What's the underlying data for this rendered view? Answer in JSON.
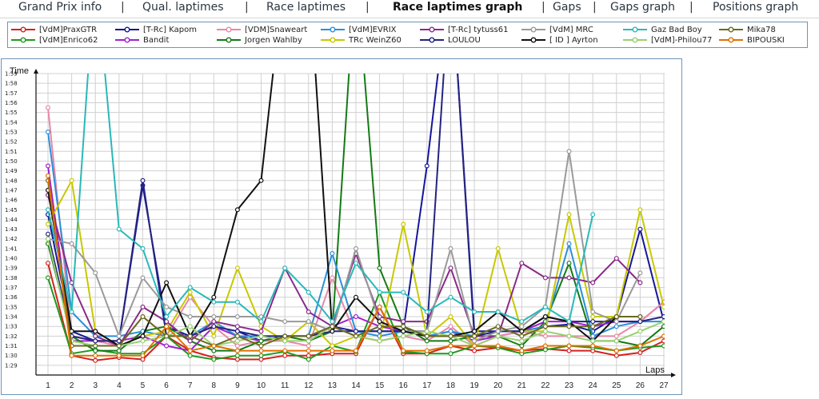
{
  "nav": {
    "items": [
      {
        "label": "Grand Prix info",
        "active": false
      },
      {
        "label": "Qual. laptimes",
        "active": false
      },
      {
        "label": "Race laptimes",
        "active": false
      },
      {
        "label": "Race laptimes graph",
        "active": true
      },
      {
        "label": "Gaps",
        "active": false
      },
      {
        "label": "Gaps graph",
        "active": false
      },
      {
        "label": "Positions graph",
        "active": false
      }
    ],
    "separator": "|"
  },
  "chart_data": {
    "type": "line",
    "ylabel": "Time",
    "xlabel": "Laps",
    "x": [
      1,
      2,
      3,
      4,
      5,
      6,
      7,
      8,
      9,
      10,
      11,
      12,
      13,
      14,
      15,
      16,
      17,
      18,
      19,
      20,
      21,
      22,
      23,
      24,
      25,
      26,
      27
    ],
    "y_ticks": [
      "1:29",
      "1:30",
      "1:31",
      "1:32",
      "1:33",
      "1:34",
      "1:35",
      "1:36",
      "1:37",
      "1:38",
      "1:39",
      "1:40",
      "1:41",
      "1:42",
      "1:43",
      "1:44",
      "1:45",
      "1:46",
      "1:47",
      "1:48",
      "1:49",
      "1:50",
      "1:51",
      "1:52",
      "1:53",
      "1:54",
      "1:55",
      "1:56",
      "1:57",
      "1:58",
      "1:59"
    ],
    "ylim_seconds": [
      88,
      119
    ],
    "grid": true,
    "legend_position": "top",
    "series": [
      {
        "name": "[VdM]PraxGTR",
        "color": "#d42020",
        "values": [
          99.5,
          90,
          89.5,
          89.8,
          89.6,
          92,
          90.5,
          89.8,
          89.6,
          89.6,
          90,
          90,
          90.2,
          90.2,
          95,
          90.2,
          90.2,
          91,
          90.5,
          90.8,
          90.5,
          90.7,
          90.5,
          90.5,
          90,
          90.3,
          91.5
        ]
      },
      {
        "name": "[VdM]Enrico62",
        "color": "#1e9a1e",
        "values": [
          98,
          90.2,
          90.6,
          90.2,
          90.2,
          92,
          90,
          89.6,
          90,
          90,
          90.4,
          89.6,
          91,
          90.4,
          96.5,
          90.4,
          90.2,
          90.2,
          91,
          90.8,
          90.2,
          90.6,
          91,
          90.8,
          90.5,
          90.8,
          91
        ]
      },
      {
        "name": "[T-Rc] Kapom",
        "color": "#16169a",
        "values": [
          104.5,
          92.5,
          91.5,
          91.5,
          107.5,
          93,
          92,
          93,
          92.5,
          91.5,
          92,
          92,
          93,
          92.5,
          92.5,
          92.5,
          109.5,
          130,
          92.5,
          92.5,
          92.5,
          93,
          93.2,
          92.5,
          94,
          103,
          93.5
        ]
      },
      {
        "name": "Bandit",
        "color": "#a020d0",
        "values": [
          109.5,
          91.5,
          91.5,
          91.5,
          92,
          91,
          90.5,
          93,
          92,
          91.5,
          92,
          92,
          93,
          94,
          93,
          92.5,
          92,
          92.5,
          91.5,
          92,
          92.5,
          93.5,
          93.5,
          93,
          93.5,
          93.5,
          95.5
        ]
      },
      {
        "name": "[VDM]Snaweart",
        "color": "#e888a8",
        "values": [
          115.5,
          92,
          91.5,
          91,
          94,
          92,
          96,
          93,
          91,
          91.5,
          91.5,
          91,
          98,
          92,
          91.5,
          92,
          91.5,
          93,
          91,
          92,
          92.5,
          92,
          92,
          92,
          92,
          93.5,
          95.5
        ]
      },
      {
        "name": "Jorgen Wahlby",
        "color": "#157a15",
        "values": [
          101.5,
          92,
          90.5,
          90.5,
          92.5,
          93,
          91.5,
          90.5,
          90.5,
          91.5,
          92,
          91.5,
          92.5,
          130,
          99,
          93,
          91.5,
          91.5,
          92,
          92,
          91,
          93.5,
          99.5,
          91.5,
          91.5,
          91,
          93
        ]
      },
      {
        "name": "[VdM]EVRIX",
        "color": "#2a90d8",
        "values": [
          113,
          94.5,
          92,
          92,
          92.5,
          92,
          92,
          93.5,
          92,
          92,
          92,
          92,
          100.5,
          92.5,
          92,
          92.5,
          92,
          92.5,
          92,
          92.5,
          92.5,
          93,
          101.5,
          92,
          93,
          93.5,
          93.5
        ]
      },
      {
        "name": "TRc WeinZ60",
        "color": "#c8c800",
        "values": [
          103.5,
          108,
          92.5,
          91,
          92,
          92.5,
          96.5,
          92,
          99,
          93,
          91.5,
          93.5,
          91,
          92,
          91.5,
          103.5,
          92,
          94,
          91,
          101,
          92.5,
          92.5,
          104.5,
          94,
          94,
          105,
          95
        ]
      },
      {
        "name": "[T-Rc] tytuss61",
        "color": "#8a2a8a",
        "values": [
          106.5,
          97.5,
          92,
          91,
          95,
          93.5,
          91.5,
          93.5,
          93,
          92.5,
          99,
          94.5,
          93,
          100.5,
          94,
          93.5,
          93.5,
          99,
          92,
          92,
          99.5,
          98,
          98,
          97.5,
          100,
          97.5,
          null
        ]
      },
      {
        "name": "LOULOU",
        "color": "#242480",
        "values": [
          102.5,
          92,
          91.5,
          91.5,
          108,
          92,
          92,
          93,
          92.5,
          92,
          92,
          92,
          92.5,
          92.5,
          92.5,
          92.5,
          92.5,
          130,
          92,
          92.5,
          92.5,
          94,
          93.5,
          93.5,
          93.5,
          93.5,
          94
        ]
      },
      {
        "name": "[VdM] MRC",
        "color": "#9a9a9a",
        "values": [
          102,
          101.5,
          98.5,
          92,
          98,
          95,
          94,
          94,
          94,
          94,
          93.5,
          93.5,
          92.5,
          101,
          93.5,
          92.5,
          92.5,
          101,
          91.5,
          92.5,
          93,
          95,
          111,
          94.5,
          93.5,
          98.5,
          null
        ]
      },
      {
        "name": "[ ID ] Ayrton",
        "color": "#111111",
        "values": [
          107,
          92.5,
          92.5,
          91,
          92,
          97.5,
          92,
          96,
          105,
          108,
          130,
          130,
          92.5,
          96,
          93.5,
          92.5,
          92,
          92,
          92.5,
          94.5,
          92.5,
          94,
          93.5,
          91.5,
          94,
          94,
          null
        ]
      },
      {
        "name": "Gaz Bad Boy",
        "color": "#2ab8b8",
        "values": [
          105,
          94.5,
          130,
          103,
          101,
          94,
          97,
          95.5,
          95.5,
          93.5,
          99,
          96.5,
          93.5,
          99.5,
          96.5,
          96.5,
          94.5,
          96,
          94.5,
          94.5,
          93.5,
          95,
          93.5,
          104.5,
          null,
          null,
          null
        ]
      },
      {
        "name": "[VdM]-Philou77",
        "color": "#98d070",
        "values": [
          102,
          91.5,
          91,
          91,
          91.5,
          92,
          93,
          91,
          91.5,
          92,
          91.5,
          91.5,
          93,
          92,
          91.5,
          92,
          92.5,
          92,
          91,
          92,
          91.5,
          92.5,
          92,
          91.5,
          91.5,
          92.5,
          93.5
        ]
      },
      {
        "name": "Mika78",
        "color": "#6a6a20",
        "values": [
          108,
          91,
          91,
          91,
          94,
          92,
          92,
          91,
          92,
          91,
          92,
          92,
          93,
          92,
          93,
          93,
          92,
          92,
          92,
          93,
          92,
          93,
          93,
          93,
          94,
          94,
          null
        ]
      },
      {
        "name": "BIPOUSKI",
        "color": "#e07000",
        "values": [
          108.5,
          90,
          90,
          90,
          90,
          93,
          90.5,
          91,
          90.5,
          90.5,
          90.5,
          90.5,
          90.5,
          90.5,
          95,
          90.5,
          90.5,
          91,
          91,
          91,
          90.5,
          91,
          91,
          91,
          90.5,
          91,
          92
        ]
      }
    ]
  }
}
